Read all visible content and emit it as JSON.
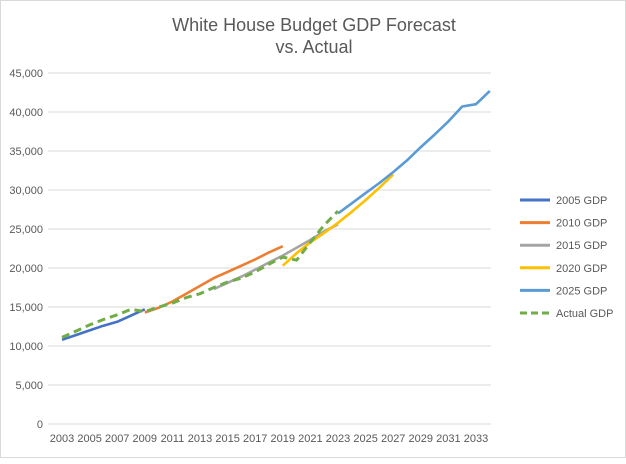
{
  "chart_data": {
    "type": "line",
    "title": [
      "White House Budget GDP Forecast",
      "vs. Actual"
    ],
    "xlabel": "",
    "ylabel": "",
    "ylim": [
      0,
      45000
    ],
    "xlim": [
      2003,
      2034
    ],
    "y_ticks": [
      0,
      5000,
      10000,
      15000,
      20000,
      25000,
      30000,
      35000,
      40000,
      45000
    ],
    "y_tick_labels": [
      "0",
      "5,000",
      "10,000",
      "15,000",
      "20,000",
      "25,000",
      "30,000",
      "35,000",
      "40,000",
      "45,000"
    ],
    "x_tick_labels": [
      "2003",
      "2005",
      "2007",
      "2009",
      "2011",
      "2013",
      "2015",
      "2017",
      "2019",
      "2021",
      "2023",
      "2025",
      "2027",
      "2029",
      "2031",
      "2033"
    ],
    "grid": true,
    "legend_position": "right",
    "series": [
      {
        "name": "2005 GDP",
        "color": "#4472C4",
        "dashed": false,
        "x": [
          2003,
          2004,
          2005,
          2006,
          2007,
          2008,
          2009
        ],
        "values": [
          10800,
          11400,
          12000,
          12600,
          13100,
          13900,
          14700
        ]
      },
      {
        "name": "2010 GDP",
        "color": "#ED7D31",
        "dashed": false,
        "x": [
          2009,
          2010,
          2011,
          2012,
          2013,
          2014,
          2015,
          2016,
          2017,
          2018,
          2019
        ],
        "values": [
          14300,
          14900,
          15700,
          16700,
          17700,
          18700,
          19500,
          20300,
          21100,
          22000,
          22800
        ]
      },
      {
        "name": "2015 GDP",
        "color": "#A5A5A5",
        "dashed": false,
        "x": [
          2014,
          2015,
          2016,
          2017,
          2018,
          2019,
          2020,
          2021,
          2022,
          2023
        ],
        "values": [
          17300,
          18100,
          18900,
          19800,
          20700,
          21600,
          22600,
          23600,
          24700,
          25600
        ]
      },
      {
        "name": "2020 GDP",
        "color": "#FFC000",
        "dashed": false,
        "x": [
          2019,
          2020,
          2021,
          2022,
          2023,
          2024,
          2025,
          2026,
          2027
        ],
        "values": [
          20300,
          21900,
          23300,
          24500,
          25800,
          27200,
          28700,
          30300,
          32000
        ]
      },
      {
        "name": "2025 GDP",
        "color": "#5B9BD5",
        "dashed": false,
        "x": [
          2023,
          2024,
          2025,
          2026,
          2027,
          2028,
          2029,
          2030,
          2031,
          2032,
          2033,
          2034
        ],
        "values": [
          27000,
          28300,
          29600,
          30900,
          32300,
          33800,
          35500,
          37100,
          38800,
          40700,
          41000,
          42700
        ]
      },
      {
        "name": "Actual GDP",
        "color": "#70AD47",
        "dashed": true,
        "x": [
          2003,
          2004,
          2005,
          2006,
          2007,
          2008,
          2009,
          2010,
          2011,
          2012,
          2013,
          2014,
          2015,
          2016,
          2017,
          2018,
          2019,
          2020,
          2021,
          2022,
          2023
        ],
        "values": [
          11100,
          11900,
          12700,
          13400,
          14000,
          14700,
          14400,
          15000,
          15500,
          16200,
          16700,
          17500,
          18200,
          18700,
          19500,
          20500,
          21400,
          21000,
          23300,
          25500,
          27300
        ]
      }
    ]
  }
}
